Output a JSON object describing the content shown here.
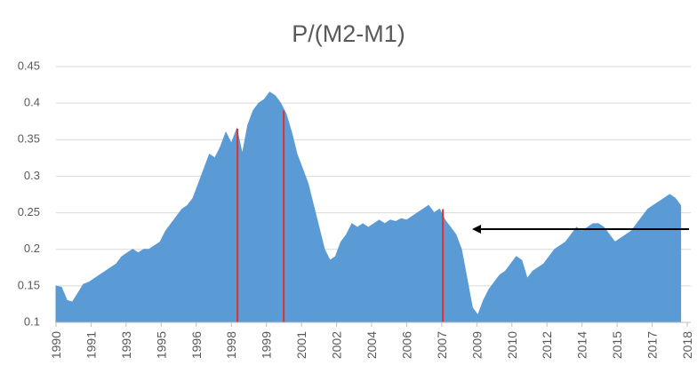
{
  "chart_data": {
    "type": "area",
    "title": "P/(M2-M1)",
    "x": [
      1990,
      1990.25,
      1990.5,
      1990.75,
      1991,
      1991.25,
      1991.5,
      1991.75,
      1992,
      1992.25,
      1992.5,
      1992.75,
      1993,
      1993.25,
      1993.5,
      1993.75,
      1994,
      1994.25,
      1994.5,
      1994.75,
      1995,
      1995.25,
      1995.5,
      1995.75,
      1996,
      1996.25,
      1996.5,
      1996.75,
      1997,
      1997.25,
      1997.5,
      1997.75,
      1998,
      1998.25,
      1998.5,
      1998.75,
      1999,
      1999.25,
      1999.5,
      1999.75,
      2000,
      2000.25,
      2000.5,
      2000.75,
      2001,
      2001.25,
      2001.5,
      2001.75,
      2002,
      2002.25,
      2002.5,
      2002.75,
      2003,
      2003.25,
      2003.5,
      2003.75,
      2004,
      2004.25,
      2004.5,
      2004.75,
      2005,
      2005.25,
      2005.5,
      2005.75,
      2006,
      2006.25,
      2006.5,
      2006.75,
      2007,
      2007.25,
      2007.5,
      2007.75,
      2008,
      2008.25,
      2008.5,
      2008.75,
      2009,
      2009.25,
      2009.5,
      2009.75,
      2010,
      2010.25,
      2010.5,
      2010.75,
      2011,
      2011.25,
      2011.5,
      2011.75,
      2012,
      2012.25,
      2012.5,
      2012.75,
      2013,
      2013.25,
      2013.5,
      2013.75,
      2014,
      2014.25,
      2014.5,
      2014.75,
      2015,
      2015.25,
      2015.5,
      2015.75,
      2016,
      2016.25,
      2016.5,
      2016.75,
      2017,
      2017.25,
      2017.5,
      2017.75,
      2018,
      2018.25,
      2018.5
    ],
    "values": [
      0.15,
      0.148,
      0.13,
      0.128,
      0.14,
      0.152,
      0.155,
      0.16,
      0.165,
      0.17,
      0.175,
      0.18,
      0.19,
      0.195,
      0.2,
      0.195,
      0.2,
      0.2,
      0.205,
      0.21,
      0.225,
      0.235,
      0.245,
      0.255,
      0.26,
      0.27,
      0.29,
      0.31,
      0.33,
      0.325,
      0.34,
      0.36,
      0.345,
      0.365,
      0.33,
      0.37,
      0.39,
      0.4,
      0.405,
      0.415,
      0.41,
      0.4,
      0.385,
      0.36,
      0.33,
      0.31,
      0.29,
      0.26,
      0.23,
      0.2,
      0.185,
      0.19,
      0.21,
      0.22,
      0.235,
      0.23,
      0.235,
      0.23,
      0.235,
      0.24,
      0.235,
      0.24,
      0.238,
      0.242,
      0.24,
      0.245,
      0.25,
      0.255,
      0.26,
      0.25,
      0.255,
      0.24,
      0.23,
      0.22,
      0.2,
      0.16,
      0.12,
      0.11,
      0.13,
      0.145,
      0.155,
      0.165,
      0.17,
      0.18,
      0.19,
      0.185,
      0.16,
      0.17,
      0.175,
      0.18,
      0.19,
      0.2,
      0.205,
      0.21,
      0.22,
      0.23,
      0.225,
      0.23,
      0.235,
      0.235,
      0.23,
      0.22,
      0.21,
      0.215,
      0.22,
      0.225,
      0.235,
      0.245,
      0.255,
      0.26,
      0.265,
      0.27,
      0.275,
      0.27,
      0.26
    ],
    "color": "#5b9bd5",
    "markers": [
      {
        "x": 1998.28,
        "value": 0.365
      },
      {
        "x": 2000.39,
        "value": 0.39
      },
      {
        "x": 2007.65,
        "value": 0.255
      }
    ],
    "marker_color": "#e0302b",
    "xlim": [
      1990,
      2018.8
    ],
    "xticks": [
      {
        "value": 1990,
        "label": "1990"
      },
      {
        "value": 1991.6,
        "label": "1991"
      },
      {
        "value": 1993.2,
        "label": "1993"
      },
      {
        "value": 1994.8,
        "label": "1995"
      },
      {
        "value": 1996.4,
        "label": "1996"
      },
      {
        "value": 1998,
        "label": "1998"
      },
      {
        "value": 1999.6,
        "label": "1999"
      },
      {
        "value": 2001.2,
        "label": "2001"
      },
      {
        "value": 2002.8,
        "label": "2002"
      },
      {
        "value": 2004.4,
        "label": "2004"
      },
      {
        "value": 2006,
        "label": "2006"
      },
      {
        "value": 2007.6,
        "label": "2007"
      },
      {
        "value": 2009.2,
        "label": "2009"
      },
      {
        "value": 2010.8,
        "label": "2010"
      },
      {
        "value": 2012.4,
        "label": "2012"
      },
      {
        "value": 2014,
        "label": "2014"
      },
      {
        "value": 2015.6,
        "label": "2015"
      },
      {
        "value": 2017.2,
        "label": "2017"
      },
      {
        "value": 2018.8,
        "label": "2018"
      }
    ],
    "ylim": [
      0.1,
      0.45
    ],
    "yticks": [
      0.1,
      0.15,
      0.2,
      0.25,
      0.3,
      0.35,
      0.4,
      0.45
    ],
    "grid": true
  }
}
